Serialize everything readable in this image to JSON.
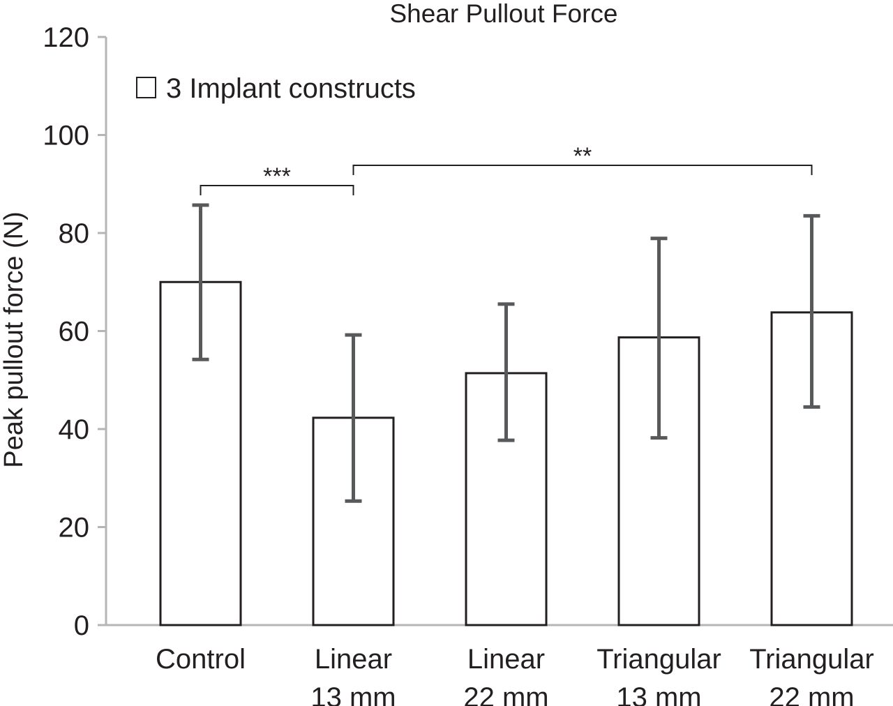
{
  "chart_data": {
    "type": "bar",
    "title": "Shear Pullout Force",
    "xlabel": "",
    "ylabel": "Peak pullout force (N)",
    "ylim": [
      0,
      120
    ],
    "yticks": [
      0,
      20,
      40,
      60,
      80,
      100,
      120
    ],
    "grid": false,
    "legend_position": "top-left",
    "categories": [
      [
        "Control"
      ],
      [
        "Linear",
        "13 mm"
      ],
      [
        "Linear",
        "22 mm"
      ],
      [
        "Triangular",
        "13 mm"
      ],
      [
        "Triangular",
        "22 mm"
      ]
    ],
    "series": [
      {
        "name": "3 Implant constructs",
        "values": [
          70,
          42.3,
          51.4,
          58.7,
          63.8
        ],
        "error_low": [
          54.2,
          25.3,
          37.7,
          38.2,
          44.5
        ],
        "error_high": [
          85.7,
          59.2,
          65.5,
          78.9,
          83.5
        ]
      }
    ],
    "significance": [
      {
        "from": 0,
        "to": 1,
        "label": "***"
      },
      {
        "from": 1,
        "to": 4,
        "label": "**"
      }
    ],
    "colors": {
      "axis": "#b5b5b5",
      "bar_edge": "#231f20",
      "bar_fill": "#ffffff",
      "error_bar": "#58595b",
      "text": "#231f20"
    }
  }
}
